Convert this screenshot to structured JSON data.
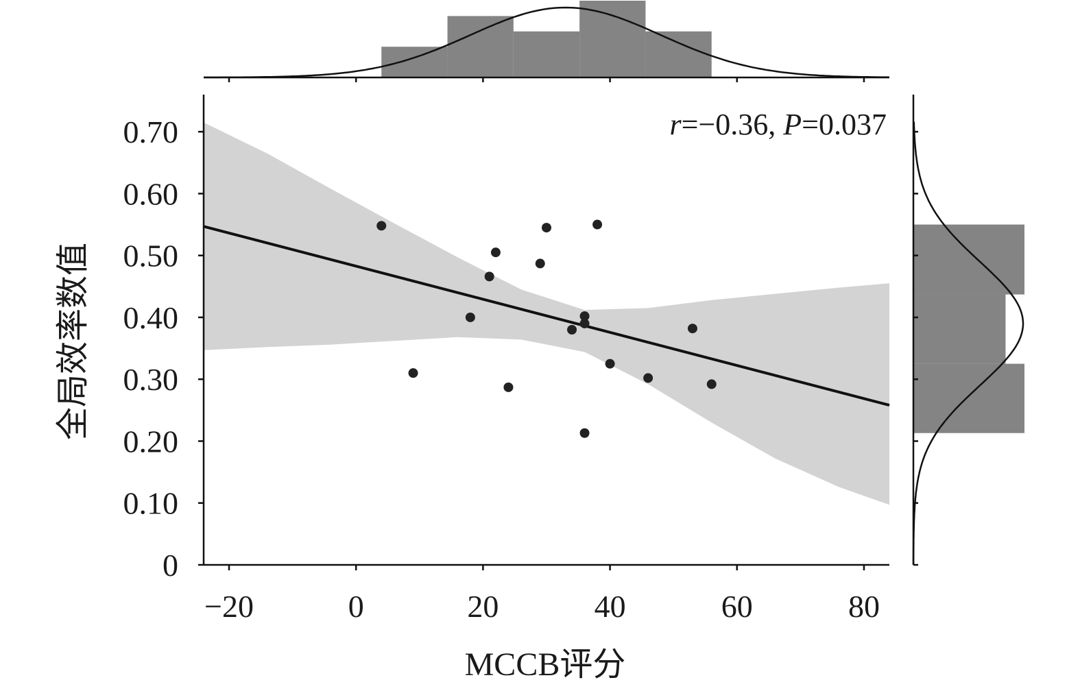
{
  "chart_data": {
    "type": "scatter",
    "title": "",
    "xlabel": "MCCB评分",
    "ylabel": "全局效率数值",
    "xlim": [
      -24,
      84
    ],
    "ylim": [
      0,
      0.76
    ],
    "x_ticks": [
      -20,
      0,
      20,
      40,
      60,
      80
    ],
    "x_tick_labels": [
      "−20",
      "0",
      "20",
      "40",
      "60",
      "80"
    ],
    "y_ticks": [
      0,
      0.1,
      0.2,
      0.3,
      0.4,
      0.5,
      0.6,
      0.7
    ],
    "y_tick_labels": [
      "0",
      "0.10",
      "0.20",
      "0.30",
      "0.40",
      "0.50",
      "0.60",
      "0.70"
    ],
    "grid": false,
    "annotation": {
      "r_symbol": "r",
      "r_value": "=−0.36, ",
      "p_symbol": "P",
      "p_value": "=0.037"
    },
    "points": [
      {
        "x": 4,
        "y": 0.548
      },
      {
        "x": 9,
        "y": 0.31
      },
      {
        "x": 18,
        "y": 0.4
      },
      {
        "x": 21,
        "y": 0.466
      },
      {
        "x": 22,
        "y": 0.505
      },
      {
        "x": 24,
        "y": 0.287
      },
      {
        "x": 29,
        "y": 0.487
      },
      {
        "x": 30,
        "y": 0.545
      },
      {
        "x": 34,
        "y": 0.38
      },
      {
        "x": 36,
        "y": 0.402
      },
      {
        "x": 36,
        "y": 0.39
      },
      {
        "x": 36,
        "y": 0.213
      },
      {
        "x": 38,
        "y": 0.55
      },
      {
        "x": 40,
        "y": 0.325
      },
      {
        "x": 46,
        "y": 0.302
      },
      {
        "x": 53,
        "y": 0.382
      },
      {
        "x": 56,
        "y": 0.292
      }
    ],
    "regression_line": {
      "x": [
        -24,
        84
      ],
      "y": [
        0.547,
        0.258
      ]
    },
    "confidence_band": {
      "x": [
        -24,
        -14,
        -4,
        6,
        16,
        26,
        36,
        46,
        56,
        66,
        76,
        84
      ],
      "upper": [
        0.715,
        0.665,
        0.608,
        0.552,
        0.497,
        0.445,
        0.412,
        0.415,
        0.428,
        0.438,
        0.448,
        0.455
      ],
      "lower": [
        0.347,
        0.352,
        0.356,
        0.362,
        0.368,
        0.364,
        0.344,
        0.292,
        0.23,
        0.172,
        0.126,
        0.097
      ]
    },
    "marginal_x": {
      "bins": [
        4,
        14.4,
        24.8,
        35.2,
        45.6,
        56
      ],
      "heights": [
        0.4,
        0.8,
        0.6,
        1.0,
        0.6
      ],
      "kde_mean": 33,
      "kde_sd": 15
    },
    "marginal_y": {
      "bins": [
        0.213,
        0.325,
        0.437,
        0.55
      ],
      "widths": [
        1.0,
        0.83,
        1.0
      ],
      "kde_mean": 0.39,
      "kde_sd": 0.1
    },
    "colors": {
      "points": "#222222",
      "line": "#111111",
      "band": "#d3d3d3",
      "bars": "#848484",
      "axes": "#111111"
    }
  }
}
